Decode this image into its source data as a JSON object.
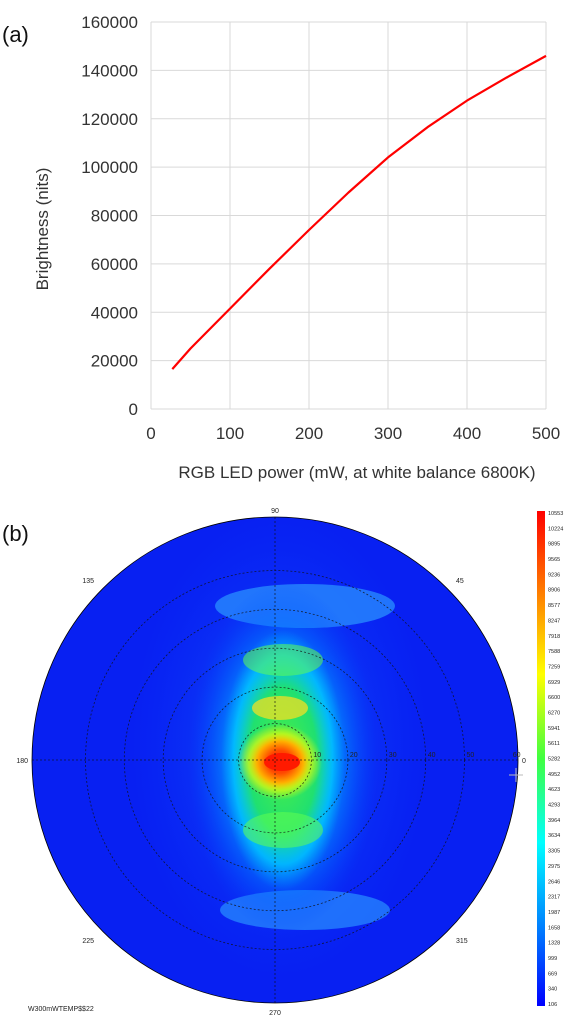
{
  "chart_data": [
    {
      "type": "line",
      "panel_label": "(a)",
      "title": "",
      "xlabel": "RGB LED power (mW, at white balance 6800K)",
      "ylabel": "Brightness (nits)",
      "xlim": [
        0,
        500
      ],
      "ylim": [
        0,
        160000
      ],
      "x_ticks": [
        "0",
        "100",
        "200",
        "300",
        "400",
        "500"
      ],
      "y_ticks": [
        "0",
        "20000",
        "40000",
        "60000",
        "80000",
        "100000",
        "120000",
        "140000",
        "160000"
      ],
      "grid": true,
      "legend": "none",
      "series": [
        {
          "color": "#ff0000",
          "x": [
            27,
            50,
            100,
            150,
            200,
            250,
            300,
            350,
            400,
            450,
            500
          ],
          "y": [
            16500,
            25000,
            41500,
            58000,
            74000,
            89500,
            104000,
            116500,
            127500,
            137000,
            146000
          ]
        }
      ]
    },
    {
      "type": "heatmap",
      "subtype": "polar",
      "panel_label": "(b)",
      "angle_labels": [
        "90",
        "45",
        "135",
        "180",
        "0",
        "225",
        "315",
        "270"
      ],
      "radial_labels": [
        "10",
        "20",
        "30",
        "40",
        "50",
        "60"
      ],
      "colorbar": {
        "labels": [
          "10553",
          "10224",
          "9895",
          "9565",
          "9236",
          "8906",
          "8577",
          "8247",
          "7918",
          "7588",
          "7259",
          "6929",
          "6600",
          "6270",
          "5941",
          "5611",
          "5282",
          "4952",
          "4623",
          "4293",
          "3964",
          "3634",
          "3305",
          "2975",
          "2646",
          "2317",
          "1987",
          "1658",
          "1328",
          "999",
          "669",
          "340",
          "106"
        ],
        "max_color": "#ff0000",
        "min_color": "#0000ff"
      },
      "caption": "W300mWTEMP$$22"
    }
  ]
}
